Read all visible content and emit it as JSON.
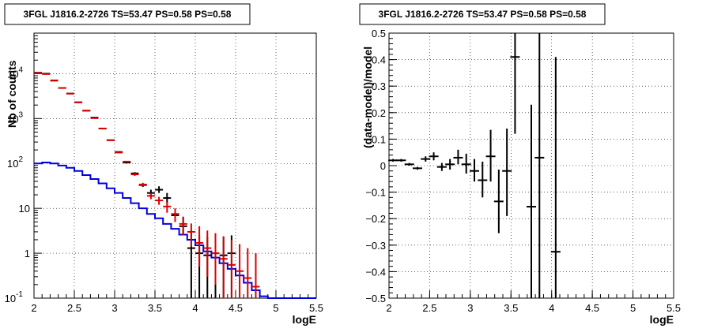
{
  "chart_data": [
    {
      "type": "scatter",
      "title": "3FGL J1816.2-2726 TS=53.47 PS=0.58 PS=0.58",
      "xlabel": "logE",
      "ylabel": "Nb of counts",
      "xlim": [
        2,
        5.5
      ],
      "ylim": [
        0.1,
        80000
      ],
      "yscale": "log",
      "grid": true,
      "x_ticks": [
        "2",
        "2.5",
        "3",
        "3.5",
        "4",
        "4.5",
        "5",
        "5.5"
      ],
      "y_ticks": [
        {
          "value": 0.1,
          "label": "10",
          "exp": "-1"
        },
        {
          "value": 1,
          "label": "1",
          "exp": ""
        },
        {
          "value": 10,
          "label": "10",
          "exp": ""
        },
        {
          "value": 100,
          "label": "10",
          "exp": "2"
        },
        {
          "value": 1000,
          "label": "10",
          "exp": "3"
        },
        {
          "value": 10000,
          "label": "10",
          "exp": "4"
        }
      ],
      "colors": {
        "data": "#000000",
        "model": "#dd0000",
        "background": "#0000dd"
      },
      "series": [
        {
          "style": "errorbar",
          "color": "#000000",
          "x": [
            2.05,
            2.15,
            2.25,
            2.35,
            2.45,
            2.55,
            2.65,
            2.75,
            2.85,
            2.95,
            3.05,
            3.15,
            3.25,
            3.35,
            3.45,
            3.55,
            3.65,
            3.75,
            3.85,
            3.95,
            4.05,
            4.15,
            4.25,
            4.35,
            4.45
          ],
          "y": [
            10500,
            10000,
            7000,
            4800,
            3600,
            2300,
            1500,
            1050,
            600,
            330,
            180,
            105,
            60,
            33,
            22,
            26,
            17,
            7,
            4,
            1.3,
            1,
            0.9,
            1.0,
            0.9,
            1
          ],
          "y_low": [
            10400,
            9900,
            6950,
            4750,
            3550,
            2270,
            1480,
            1030,
            590,
            320,
            174,
            100,
            56,
            30,
            18,
            22,
            13,
            5,
            2.5,
            0.1,
            0.1,
            0.1,
            0.1,
            0.1,
            0.1
          ],
          "y_high": [
            10600,
            10100,
            7050,
            4850,
            3650,
            2330,
            1520,
            1070,
            610,
            340,
            186,
            110,
            64,
            36,
            26,
            31,
            22,
            9.5,
            6.5,
            3.2,
            2.5,
            2.3,
            2.5,
            2.3,
            2.5
          ]
        },
        {
          "style": "errorbar",
          "color": "#dd0000",
          "x": [
            2.05,
            2.15,
            2.25,
            2.35,
            2.45,
            2.55,
            2.65,
            2.75,
            2.85,
            2.95,
            3.05,
            3.15,
            3.25,
            3.35,
            3.45,
            3.55,
            3.65,
            3.75,
            3.85,
            3.95,
            4.05,
            4.15,
            4.25,
            4.35,
            4.45,
            4.55,
            4.65,
            4.75
          ],
          "y": [
            10300,
            9800,
            7100,
            4800,
            3600,
            2300,
            1500,
            1020,
            600,
            330,
            175,
            110,
            57,
            34,
            19,
            15,
            11,
            7.5,
            4.5,
            3,
            1.7,
            1.3,
            1,
            0.75,
            0.55,
            0.4,
            0.28,
            0.18
          ],
          "y_low": [
            10200,
            9700,
            7050,
            4750,
            3550,
            2270,
            1480,
            1000,
            590,
            322,
            170,
            106,
            53,
            31,
            16,
            12,
            8,
            5,
            2.5,
            1.4,
            0.5,
            0.3,
            0.2,
            0.1,
            0.1,
            0.1,
            0.1,
            0.1
          ],
          "y_high": [
            10400,
            9900,
            7150,
            4850,
            3650,
            2330,
            1520,
            1040,
            610,
            338,
            180,
            114,
            61,
            37,
            22,
            18,
            14,
            10,
            6.5,
            4.6,
            4,
            3.2,
            2.8,
            2.4,
            2,
            1.6,
            1.3,
            1.0
          ]
        },
        {
          "style": "step",
          "color": "#0000dd",
          "edges": [
            2.0,
            2.1,
            2.2,
            2.3,
            2.4,
            2.5,
            2.6,
            2.7,
            2.8,
            2.9,
            3.0,
            3.1,
            3.2,
            3.3,
            3.4,
            3.5,
            3.6,
            3.7,
            3.8,
            3.9,
            4.0,
            4.1,
            4.2,
            4.3,
            4.4,
            4.5,
            4.6,
            4.7,
            4.8,
            4.9,
            5.0,
            5.1,
            5.2,
            5.3,
            5.4,
            5.5
          ],
          "values": [
            100,
            105,
            100,
            90,
            80,
            68,
            55,
            45,
            36,
            28,
            22,
            17,
            13,
            10,
            7.5,
            6,
            4.5,
            3.5,
            2.6,
            2,
            1.5,
            1.1,
            0.8,
            0.6,
            0.45,
            0.32,
            0.22,
            0.15,
            0.11,
            0.1,
            0.1,
            0.1,
            0.1,
            0.1,
            0.1
          ]
        }
      ]
    },
    {
      "type": "scatter",
      "title": "3FGL J1816.2-2726 TS=53.47 PS=0.58 PS=0.58",
      "xlabel": "logE",
      "ylabel": "(data-model)/model",
      "xlim": [
        2,
        5.5
      ],
      "ylim": [
        -0.5,
        0.5
      ],
      "grid": true,
      "x_ticks": [
        "2",
        "2.5",
        "3",
        "3.5",
        "4",
        "4.5",
        "5",
        "5.5"
      ],
      "y_ticks": [
        "-0.5",
        "-0.4",
        "-0.3",
        "-0.2",
        "-0.1",
        "0",
        "0.1",
        "0.2",
        "0.3",
        "0.4",
        "0.5"
      ],
      "series": [
        {
          "style": "errorbar",
          "color": "#000000",
          "x": [
            2.05,
            2.15,
            2.25,
            2.35,
            2.45,
            2.55,
            2.65,
            2.75,
            2.85,
            2.95,
            3.05,
            3.15,
            3.25,
            3.35,
            3.45,
            3.55,
            3.75,
            3.85,
            4.05
          ],
          "y": [
            0.02,
            0.02,
            0.005,
            -0.01,
            0.025,
            0.035,
            -0.005,
            0.005,
            0.03,
            0.005,
            -0.02,
            -0.055,
            0.035,
            -0.135,
            -0.02,
            0.41,
            -0.155,
            0.03,
            -0.325
          ],
          "y_low": [
            0.015,
            0.015,
            0.0,
            -0.015,
            0.015,
            0.02,
            -0.02,
            -0.015,
            0.005,
            -0.03,
            -0.06,
            -0.12,
            -0.06,
            -0.255,
            -0.19,
            0.12,
            -0.5,
            -0.5,
            -0.5
          ],
          "y_high": [
            0.025,
            0.025,
            0.01,
            -0.005,
            0.035,
            0.05,
            0.01,
            0.025,
            0.06,
            0.045,
            0.025,
            0.015,
            0.135,
            -0.015,
            0.14,
            0.5,
            0.23,
            0.5,
            0.41
          ]
        }
      ]
    }
  ]
}
